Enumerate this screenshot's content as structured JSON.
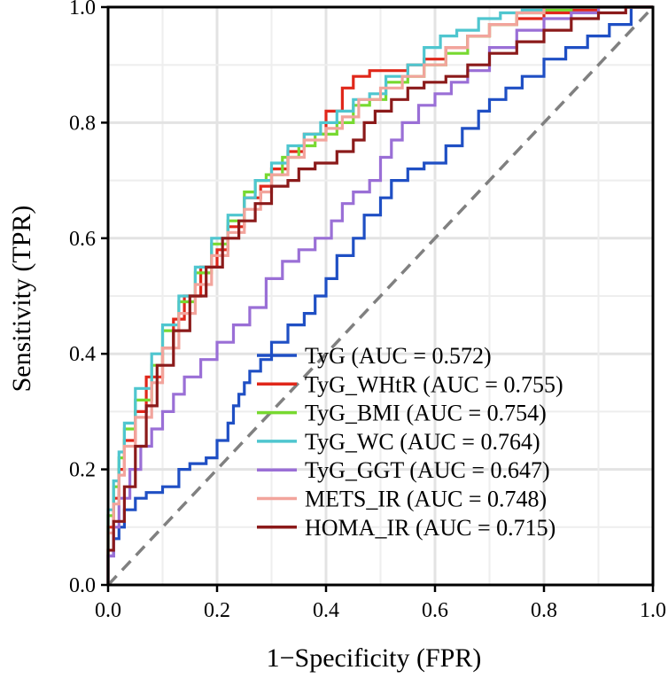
{
  "chart_data": {
    "type": "line",
    "xlabel": "1−Specificity (FPR)",
    "ylabel": "Sensitivity (TPR)",
    "xlim": [
      0,
      1
    ],
    "ylim": [
      0,
      1
    ],
    "xticks": [
      "0.0",
      "0.2",
      "0.4",
      "0.6",
      "0.8",
      "1.0"
    ],
    "yticks": [
      "0.0",
      "0.2",
      "0.4",
      "0.6",
      "0.8",
      "1.0"
    ],
    "grid": true,
    "legend_position": "bottom-right",
    "reference_line": {
      "name": "chance",
      "color": "#808080",
      "points": [
        [
          0,
          0
        ],
        [
          1,
          1
        ]
      ]
    },
    "series": [
      {
        "name": "TyG",
        "label": "TyG (AUC = 0.572)",
        "auc": 0.572,
        "color": "#1f4fc4",
        "points": [
          [
            0,
            0
          ],
          [
            0.01,
            0.05
          ],
          [
            0.02,
            0.08
          ],
          [
            0.03,
            0.1
          ],
          [
            0.05,
            0.13
          ],
          [
            0.07,
            0.15
          ],
          [
            0.1,
            0.16
          ],
          [
            0.13,
            0.17
          ],
          [
            0.15,
            0.2
          ],
          [
            0.18,
            0.21
          ],
          [
            0.2,
            0.22
          ],
          [
            0.22,
            0.25
          ],
          [
            0.23,
            0.28
          ],
          [
            0.24,
            0.31
          ],
          [
            0.25,
            0.33
          ],
          [
            0.26,
            0.35
          ],
          [
            0.28,
            0.37
          ],
          [
            0.3,
            0.39
          ],
          [
            0.33,
            0.42
          ],
          [
            0.36,
            0.45
          ],
          [
            0.38,
            0.47
          ],
          [
            0.4,
            0.5
          ],
          [
            0.42,
            0.53
          ],
          [
            0.45,
            0.57
          ],
          [
            0.47,
            0.6
          ],
          [
            0.5,
            0.64
          ],
          [
            0.52,
            0.67
          ],
          [
            0.55,
            0.7
          ],
          [
            0.58,
            0.72
          ],
          [
            0.62,
            0.73
          ],
          [
            0.65,
            0.76
          ],
          [
            0.68,
            0.79
          ],
          [
            0.7,
            0.82
          ],
          [
            0.73,
            0.84
          ],
          [
            0.76,
            0.86
          ],
          [
            0.8,
            0.88
          ],
          [
            0.84,
            0.91
          ],
          [
            0.88,
            0.93
          ],
          [
            0.92,
            0.95
          ],
          [
            0.96,
            0.97
          ],
          [
            1,
            1
          ]
        ]
      },
      {
        "name": "TyG_WHtR",
        "label": "TyG_WHtR (AUC = 0.755)",
        "auc": 0.755,
        "color": "#e0271a",
        "points": [
          [
            0,
            0
          ],
          [
            0.01,
            0.1
          ],
          [
            0.02,
            0.15
          ],
          [
            0.03,
            0.2
          ],
          [
            0.05,
            0.25
          ],
          [
            0.07,
            0.3
          ],
          [
            0.1,
            0.36
          ],
          [
            0.12,
            0.41
          ],
          [
            0.14,
            0.46
          ],
          [
            0.17,
            0.5
          ],
          [
            0.2,
            0.55
          ],
          [
            0.22,
            0.58
          ],
          [
            0.25,
            0.62
          ],
          [
            0.28,
            0.67
          ],
          [
            0.3,
            0.69
          ],
          [
            0.33,
            0.72
          ],
          [
            0.36,
            0.75
          ],
          [
            0.4,
            0.78
          ],
          [
            0.43,
            0.82
          ],
          [
            0.45,
            0.86
          ],
          [
            0.48,
            0.88
          ],
          [
            0.5,
            0.89
          ],
          [
            0.55,
            0.89
          ],
          [
            0.58,
            0.9
          ],
          [
            0.62,
            0.91
          ],
          [
            0.66,
            0.93
          ],
          [
            0.7,
            0.95
          ],
          [
            0.75,
            0.97
          ],
          [
            0.8,
            0.98
          ],
          [
            0.85,
            0.99
          ],
          [
            0.9,
            0.995
          ],
          [
            0.95,
            1
          ],
          [
            1,
            1
          ]
        ]
      },
      {
        "name": "TyG_BMI",
        "label": "TyG_BMI (AUC = 0.754)",
        "auc": 0.754,
        "color": "#77d930",
        "points": [
          [
            0,
            0
          ],
          [
            0.01,
            0.12
          ],
          [
            0.02,
            0.17
          ],
          [
            0.03,
            0.22
          ],
          [
            0.05,
            0.27
          ],
          [
            0.08,
            0.32
          ],
          [
            0.1,
            0.38
          ],
          [
            0.13,
            0.44
          ],
          [
            0.16,
            0.49
          ],
          [
            0.19,
            0.54
          ],
          [
            0.22,
            0.59
          ],
          [
            0.25,
            0.63
          ],
          [
            0.27,
            0.68
          ],
          [
            0.29,
            0.7
          ],
          [
            0.32,
            0.71
          ],
          [
            0.35,
            0.74
          ],
          [
            0.38,
            0.76
          ],
          [
            0.42,
            0.78
          ],
          [
            0.45,
            0.8
          ],
          [
            0.48,
            0.83
          ],
          [
            0.51,
            0.84
          ],
          [
            0.55,
            0.87
          ],
          [
            0.58,
            0.88
          ],
          [
            0.62,
            0.9
          ],
          [
            0.66,
            0.92
          ],
          [
            0.7,
            0.95
          ],
          [
            0.75,
            0.97
          ],
          [
            0.8,
            0.99
          ],
          [
            0.85,
            0.995
          ],
          [
            0.9,
            1
          ],
          [
            1,
            1
          ]
        ]
      },
      {
        "name": "TyG_WC",
        "label": "TyG_WC (AUC = 0.764)",
        "auc": 0.764,
        "color": "#4fc6cf",
        "points": [
          [
            0,
            0
          ],
          [
            0.01,
            0.13
          ],
          [
            0.02,
            0.18
          ],
          [
            0.03,
            0.23
          ],
          [
            0.05,
            0.28
          ],
          [
            0.08,
            0.34
          ],
          [
            0.1,
            0.4
          ],
          [
            0.13,
            0.45
          ],
          [
            0.16,
            0.5
          ],
          [
            0.19,
            0.55
          ],
          [
            0.22,
            0.6
          ],
          [
            0.25,
            0.64
          ],
          [
            0.27,
            0.67
          ],
          [
            0.3,
            0.7
          ],
          [
            0.33,
            0.73
          ],
          [
            0.36,
            0.76
          ],
          [
            0.39,
            0.78
          ],
          [
            0.42,
            0.8
          ],
          [
            0.45,
            0.82
          ],
          [
            0.48,
            0.84
          ],
          [
            0.51,
            0.85
          ],
          [
            0.55,
            0.88
          ],
          [
            0.58,
            0.9
          ],
          [
            0.61,
            0.93
          ],
          [
            0.64,
            0.95
          ],
          [
            0.68,
            0.96
          ],
          [
            0.72,
            0.98
          ],
          [
            0.76,
            0.99
          ],
          [
            0.8,
            0.995
          ],
          [
            0.85,
            1
          ],
          [
            1,
            1
          ]
        ]
      },
      {
        "name": "TyG_GGT",
        "label": "TyG_GGT (AUC = 0.647)",
        "auc": 0.647,
        "color": "#9a6fd6",
        "points": [
          [
            0,
            0
          ],
          [
            0.01,
            0.05
          ],
          [
            0.02,
            0.1
          ],
          [
            0.04,
            0.15
          ],
          [
            0.06,
            0.2
          ],
          [
            0.08,
            0.24
          ],
          [
            0.1,
            0.27
          ],
          [
            0.12,
            0.3
          ],
          [
            0.14,
            0.33
          ],
          [
            0.17,
            0.36
          ],
          [
            0.2,
            0.39
          ],
          [
            0.23,
            0.42
          ],
          [
            0.26,
            0.45
          ],
          [
            0.29,
            0.48
          ],
          [
            0.32,
            0.53
          ],
          [
            0.35,
            0.56
          ],
          [
            0.38,
            0.58
          ],
          [
            0.41,
            0.6
          ],
          [
            0.43,
            0.63
          ],
          [
            0.45,
            0.66
          ],
          [
            0.48,
            0.68
          ],
          [
            0.5,
            0.7
          ],
          [
            0.52,
            0.74
          ],
          [
            0.54,
            0.77
          ],
          [
            0.57,
            0.8
          ],
          [
            0.6,
            0.83
          ],
          [
            0.63,
            0.85
          ],
          [
            0.66,
            0.87
          ],
          [
            0.7,
            0.89
          ],
          [
            0.75,
            0.93
          ],
          [
            0.8,
            0.96
          ],
          [
            0.85,
            0.98
          ],
          [
            0.9,
            0.99
          ],
          [
            0.95,
            1
          ],
          [
            1,
            1
          ]
        ]
      },
      {
        "name": "METS_IR",
        "label": "METS_IR (AUC = 0.748)",
        "auc": 0.748,
        "color": "#f2a49c",
        "points": [
          [
            0,
            0
          ],
          [
            0.01,
            0.09
          ],
          [
            0.02,
            0.14
          ],
          [
            0.03,
            0.19
          ],
          [
            0.05,
            0.24
          ],
          [
            0.08,
            0.29
          ],
          [
            0.1,
            0.35
          ],
          [
            0.13,
            0.41
          ],
          [
            0.16,
            0.47
          ],
          [
            0.19,
            0.52
          ],
          [
            0.22,
            0.57
          ],
          [
            0.25,
            0.61
          ],
          [
            0.28,
            0.65
          ],
          [
            0.3,
            0.68
          ],
          [
            0.33,
            0.71
          ],
          [
            0.36,
            0.74
          ],
          [
            0.4,
            0.77
          ],
          [
            0.43,
            0.79
          ],
          [
            0.46,
            0.81
          ],
          [
            0.5,
            0.84
          ],
          [
            0.54,
            0.86
          ],
          [
            0.58,
            0.88
          ],
          [
            0.62,
            0.9
          ],
          [
            0.66,
            0.93
          ],
          [
            0.7,
            0.95
          ],
          [
            0.75,
            0.97
          ],
          [
            0.8,
            0.99
          ],
          [
            0.85,
            1
          ],
          [
            1,
            1
          ]
        ]
      },
      {
        "name": "HOMA_IR",
        "label": "HOMA_IR (AUC = 0.715)",
        "auc": 0.715,
        "color": "#8b1a1a",
        "points": [
          [
            0,
            0
          ],
          [
            0.01,
            0.06
          ],
          [
            0.03,
            0.11
          ],
          [
            0.05,
            0.17
          ],
          [
            0.07,
            0.24
          ],
          [
            0.09,
            0.31
          ],
          [
            0.12,
            0.38
          ],
          [
            0.15,
            0.44
          ],
          [
            0.18,
            0.5
          ],
          [
            0.21,
            0.55
          ],
          [
            0.24,
            0.6
          ],
          [
            0.27,
            0.63
          ],
          [
            0.3,
            0.66
          ],
          [
            0.33,
            0.69
          ],
          [
            0.35,
            0.7
          ],
          [
            0.38,
            0.72
          ],
          [
            0.42,
            0.73
          ],
          [
            0.45,
            0.75
          ],
          [
            0.47,
            0.77
          ],
          [
            0.49,
            0.8
          ],
          [
            0.52,
            0.82
          ],
          [
            0.55,
            0.84
          ],
          [
            0.58,
            0.86
          ],
          [
            0.62,
            0.87
          ],
          [
            0.66,
            0.88
          ],
          [
            0.7,
            0.9
          ],
          [
            0.75,
            0.92
          ],
          [
            0.8,
            0.94
          ],
          [
            0.85,
            0.96
          ],
          [
            0.9,
            0.98
          ],
          [
            0.95,
            0.99
          ],
          [
            1,
            1
          ]
        ]
      }
    ]
  }
}
